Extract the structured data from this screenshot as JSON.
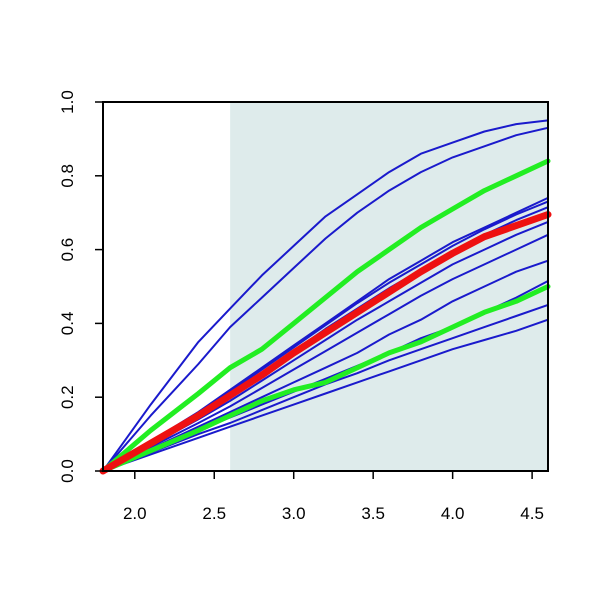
{
  "chart_data": {
    "type": "line",
    "title": "",
    "xlabel": "",
    "ylabel": "",
    "xlim": [
      1.8,
      4.6
    ],
    "ylim": [
      0.0,
      1.0
    ],
    "x_ticks": [
      2.0,
      2.5,
      3.0,
      3.5,
      4.0,
      4.5
    ],
    "x_tick_labels": [
      "2.0",
      "2.5",
      "3.0",
      "3.5",
      "4.0",
      "4.5"
    ],
    "y_ticks": [
      0.0,
      0.2,
      0.4,
      0.6,
      0.8,
      1.0
    ],
    "y_tick_labels": [
      "0.0",
      "0.2",
      "0.4",
      "0.6",
      "0.8",
      "1.0"
    ],
    "grid": false,
    "legend": "none",
    "shaded_region": {
      "x_from": 2.6,
      "x_to": 4.6,
      "color": "#deebeb"
    },
    "colors": {
      "blue": "#1a1acc",
      "green": "#22ee22",
      "red": "#ee1111"
    },
    "x": [
      1.8,
      2.1,
      2.4,
      2.6,
      2.8,
      3.0,
      3.2,
      3.4,
      3.6,
      3.8,
      4.0,
      4.2,
      4.4,
      4.6
    ],
    "series": [
      {
        "color_key": "blue",
        "values": [
          0.0,
          0.18,
          0.35,
          0.44,
          0.53,
          0.61,
          0.69,
          0.75,
          0.81,
          0.86,
          0.89,
          0.92,
          0.94,
          0.95
        ]
      },
      {
        "color_key": "blue",
        "values": [
          0.0,
          0.15,
          0.29,
          0.39,
          0.47,
          0.55,
          0.63,
          0.7,
          0.76,
          0.81,
          0.85,
          0.88,
          0.91,
          0.93
        ]
      },
      {
        "color_key": "green",
        "values": [
          0.0,
          0.11,
          0.21,
          0.28,
          0.33,
          0.4,
          0.47,
          0.54,
          0.6,
          0.66,
          0.71,
          0.76,
          0.8,
          0.84
        ]
      },
      {
        "color_key": "blue",
        "values": [
          0.0,
          0.08,
          0.16,
          0.22,
          0.28,
          0.34,
          0.4,
          0.46,
          0.52,
          0.57,
          0.62,
          0.66,
          0.7,
          0.74
        ]
      },
      {
        "color_key": "blue",
        "values": [
          0.0,
          0.08,
          0.155,
          0.215,
          0.275,
          0.335,
          0.395,
          0.455,
          0.51,
          0.56,
          0.61,
          0.655,
          0.695,
          0.73
        ]
      },
      {
        "color_key": "blue",
        "values": [
          0.0,
          0.075,
          0.15,
          0.205,
          0.265,
          0.325,
          0.385,
          0.44,
          0.495,
          0.545,
          0.595,
          0.64,
          0.68,
          0.715
        ]
      },
      {
        "color_key": "blue",
        "values": [
          0.0,
          0.07,
          0.14,
          0.19,
          0.245,
          0.3,
          0.355,
          0.41,
          0.46,
          0.51,
          0.56,
          0.6,
          0.64,
          0.675
        ]
      },
      {
        "color_key": "blue",
        "values": [
          0.0,
          0.065,
          0.13,
          0.175,
          0.225,
          0.275,
          0.325,
          0.375,
          0.425,
          0.475,
          0.52,
          0.56,
          0.6,
          0.64
        ]
      },
      {
        "color_key": "blue",
        "values": [
          0.0,
          0.06,
          0.12,
          0.16,
          0.2,
          0.24,
          0.28,
          0.32,
          0.37,
          0.41,
          0.46,
          0.5,
          0.54,
          0.57
        ]
      },
      {
        "color_key": "blue",
        "values": [
          0.0,
          0.055,
          0.11,
          0.145,
          0.18,
          0.215,
          0.25,
          0.285,
          0.32,
          0.36,
          0.39,
          0.43,
          0.47,
          0.515
        ]
      },
      {
        "color_key": "blue",
        "values": [
          0.0,
          0.05,
          0.1,
          0.13,
          0.165,
          0.2,
          0.235,
          0.265,
          0.3,
          0.33,
          0.36,
          0.39,
          0.42,
          0.45
        ]
      },
      {
        "color_key": "blue",
        "values": [
          0.0,
          0.045,
          0.09,
          0.12,
          0.15,
          0.18,
          0.21,
          0.24,
          0.27,
          0.3,
          0.33,
          0.355,
          0.38,
          0.41
        ]
      },
      {
        "color_key": "green",
        "values": [
          0.0,
          0.055,
          0.11,
          0.15,
          0.19,
          0.22,
          0.24,
          0.28,
          0.32,
          0.35,
          0.39,
          0.43,
          0.46,
          0.5
        ]
      },
      {
        "color_key": "red",
        "values": [
          0.0,
          0.075,
          0.15,
          0.205,
          0.26,
          0.32,
          0.375,
          0.43,
          0.485,
          0.54,
          0.59,
          0.635,
          0.665,
          0.695
        ]
      }
    ]
  }
}
